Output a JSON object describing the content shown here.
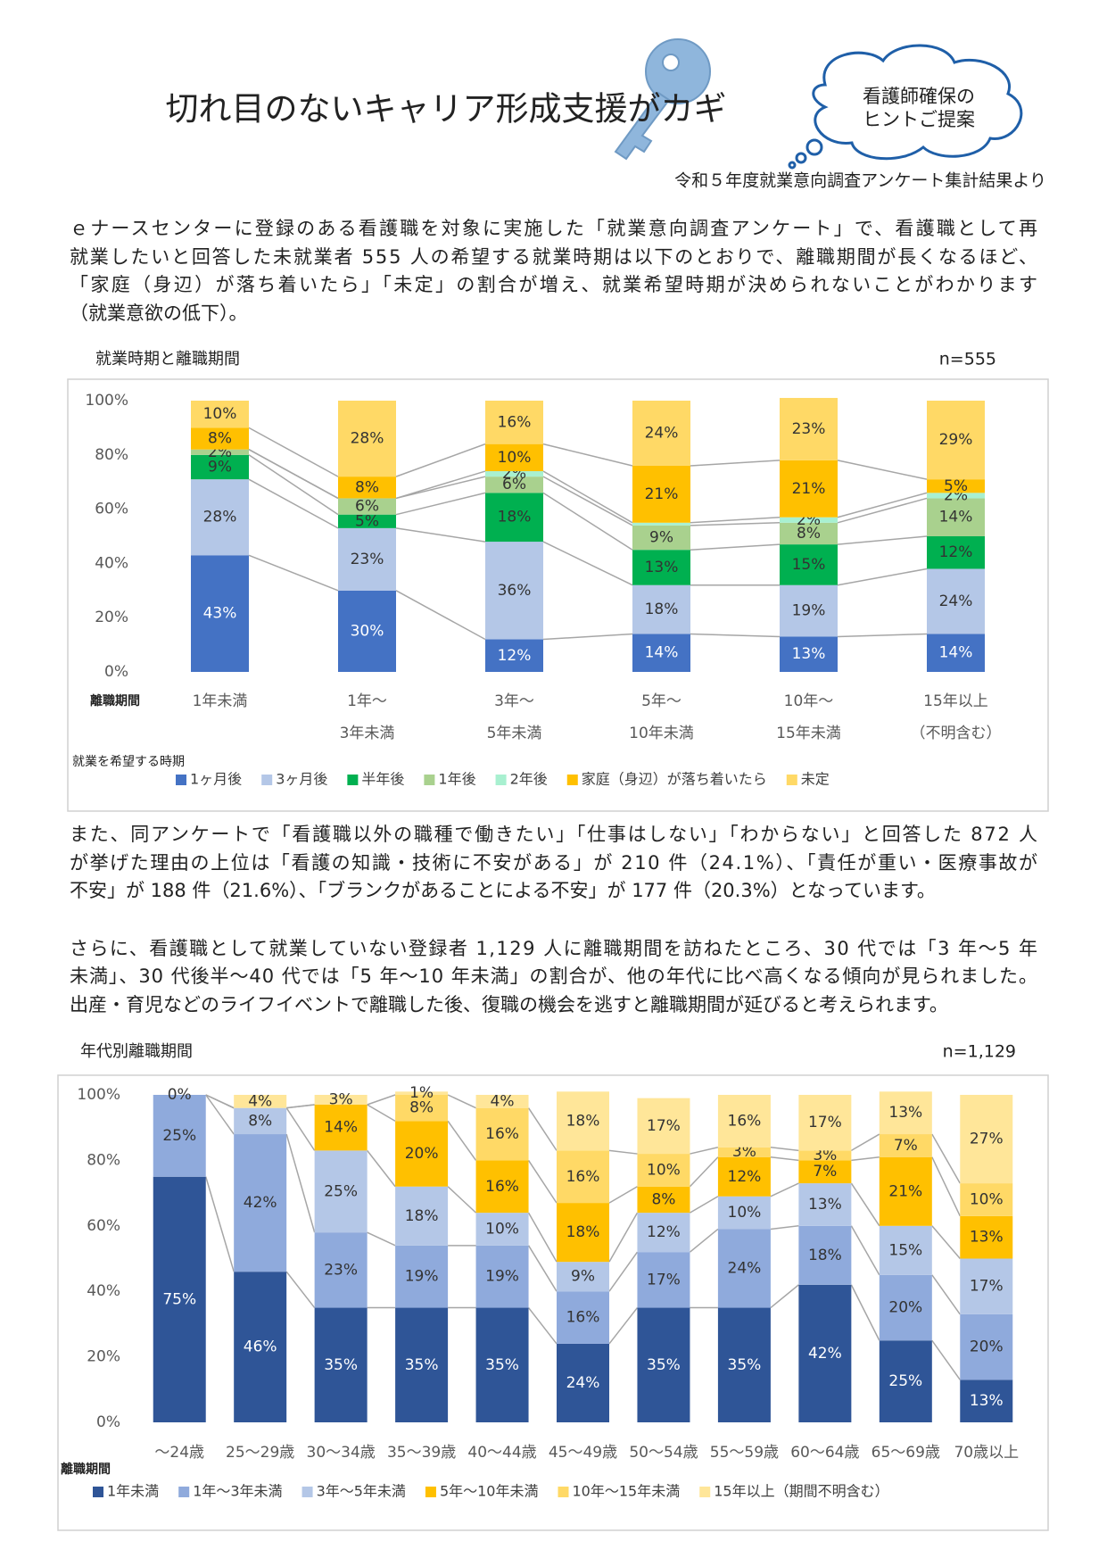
{
  "header": {
    "title": "切れ目のないキャリア形成支援がカギ",
    "cloud": [
      "看護師確保の",
      "ヒントご提案"
    ],
    "source": "令和５年度就業意向調査アンケート集計結果より"
  },
  "paragraphs": [
    [
      "ｅナースセンターに登録のある看護職を対象に実施した「就業意向調査アンケート」で、看護職として再",
      "就業したいと回答した未就業者 555 人の希望する就業時期は以下のとおりで、離職期間が長くなるほど、",
      "「家庭（身辺）が落ち着いたら」「未定」の割合が増え、就業希望時期が決められないことがわかります",
      "（就業意欲の低下）。"
    ],
    [
      "また、同アンケートで「看護職以外の職種で働きたい」「仕事はしない」「わからない」と回答した 872 人",
      "が挙げた理由の上位は「看護の知識・技術に不安がある」が 210 件（24.1%）、「責任が重い・医療事故が",
      "不安」が 188 件（21.6%）、「ブランクがあることによる不安」が 177 件（20.3%）となっています。"
    ],
    [
      "さらに、看護職として就業していない登録者 1,129 人に離職期間を訪ねたところ、30 代では「3 年～5 年",
      "未満」、30 代後半～40 代では「5 年～10 年未満」の割合が、他の年代に比べ高くなる傾向が見られました。",
      "出産・育児などのライフイベントで離職した後、復職の機会を逃すと離職期間が延びると考えられます。"
    ]
  ],
  "chart_data": [
    {
      "type": "stacked_bar",
      "title": "就業時期と離職期間",
      "note": "n=555",
      "x_label": "離職期間",
      "legend_title": "就業を希望する時期",
      "categories": [
        [
          "1年未満"
        ],
        [
          "1年～",
          "3年未満"
        ],
        [
          "3年～",
          "5年未満"
        ],
        [
          "5年～",
          "10年未満"
        ],
        [
          "10年～",
          "15年未満"
        ],
        [
          "15年以上",
          "（不明含む）"
        ]
      ],
      "ylim": [
        0,
        100
      ],
      "yticks": [
        {
          "value": 0,
          "label": "0%"
        },
        {
          "value": 20,
          "label": "20%"
        },
        {
          "value": 40,
          "label": "40%"
        },
        {
          "value": 60,
          "label": "60%"
        },
        {
          "value": 80,
          "label": "80%"
        },
        {
          "value": 100,
          "label": "100%"
        }
      ],
      "series": [
        {
          "name": "1ヶ月後",
          "color": "#4472c4",
          "values": [
            43,
            30,
            12,
            14,
            13,
            14
          ],
          "value_labels": [
            "43%",
            "30%",
            "12%",
            "14%",
            "13%",
            "14%"
          ]
        },
        {
          "name": "3ヶ月後",
          "color": "#b4c7e7",
          "values": [
            28,
            23,
            36,
            18,
            19,
            24
          ],
          "value_labels": [
            "28%",
            "23%",
            "36%",
            "18%",
            "19%",
            "24%"
          ]
        },
        {
          "name": "半年後",
          "color": "#00b050",
          "values": [
            9,
            5,
            18,
            13,
            15,
            12
          ],
          "value_labels": [
            "9%",
            "5%",
            "18%",
            "13%",
            "15%",
            "12%"
          ]
        },
        {
          "name": "1年後",
          "color": "#a9d18e",
          "values": [
            2,
            6,
            6,
            9,
            8,
            14
          ],
          "value_labels": [
            "2%",
            "6%",
            "6%",
            "9%",
            "8%",
            "14%"
          ]
        },
        {
          "name": "2年後",
          "color": "#a8f0d0",
          "values": [
            0,
            0,
            2,
            1,
            2,
            2
          ],
          "value_labels": [
            null,
            null,
            "2%",
            null,
            "2%",
            "2%"
          ]
        },
        {
          "name": "家庭（身辺）が落ち着いたら",
          "color": "#ffc000",
          "values": [
            8,
            8,
            10,
            21,
            21,
            5
          ],
          "value_labels": [
            "8%",
            "8%",
            "10%",
            "21%",
            "21%",
            "5%"
          ]
        },
        {
          "name": "未定",
          "color": "#ffd966",
          "values": [
            10,
            28,
            16,
            24,
            23,
            29
          ],
          "value_labels": [
            "10%",
            "28%",
            "16%",
            "24%",
            "23%",
            "29%"
          ]
        }
      ]
    },
    {
      "type": "stacked_bar",
      "title": "年代別離職期間",
      "note": "n=1,129",
      "x_label": "離職期間",
      "categories": [
        [
          "～24歳"
        ],
        [
          "25～29歳"
        ],
        [
          "30～34歳"
        ],
        [
          "35～39歳"
        ],
        [
          "40～44歳"
        ],
        [
          "45～49歳"
        ],
        [
          "50～54歳"
        ],
        [
          "55～59歳"
        ],
        [
          "60～64歳"
        ],
        [
          "65～69歳"
        ],
        [
          "70歳以上"
        ]
      ],
      "ylim": [
        0,
        100
      ],
      "yticks": [
        {
          "value": 0,
          "label": "0%"
        },
        {
          "value": 20,
          "label": "20%"
        },
        {
          "value": 40,
          "label": "40%"
        },
        {
          "value": 60,
          "label": "60%"
        },
        {
          "value": 80,
          "label": "80%"
        },
        {
          "value": 100,
          "label": "100%"
        }
      ],
      "series": [
        {
          "name": "1年未満",
          "color": "#2f5597",
          "values": [
            75,
            46,
            35,
            35,
            35,
            24,
            35,
            35,
            42,
            25,
            13
          ],
          "value_labels": [
            "75%",
            "46%",
            "35%",
            "35%",
            "35%",
            "24%",
            "35%",
            "35%",
            "42%",
            "25%",
            "13%"
          ]
        },
        {
          "name": "1年～3年未満",
          "color": "#8faadc",
          "values": [
            25,
            42,
            23,
            19,
            19,
            16,
            17,
            24,
            18,
            20,
            20
          ],
          "value_labels": [
            "25%",
            "42%",
            "23%",
            "19%",
            "19%",
            "16%",
            "17%",
            "24%",
            "18%",
            "20%",
            "20%"
          ]
        },
        {
          "name": "3年～5年未満",
          "color": "#b4c7e7",
          "values": [
            0,
            8,
            25,
            18,
            10,
            9,
            12,
            10,
            13,
            15,
            17
          ],
          "value_labels": [
            null,
            "8%",
            "25%",
            "18%",
            "10%",
            "9%",
            "12%",
            "10%",
            "13%",
            "15%",
            "17%"
          ]
        },
        {
          "name": "5年～10年未満",
          "color": "#ffc000",
          "values": [
            0,
            0,
            14,
            20,
            16,
            18,
            8,
            12,
            7,
            21,
            13
          ],
          "value_labels": [
            null,
            null,
            "14%",
            "20%",
            "16%",
            "18%",
            "8%",
            "12%",
            "7%",
            "21%",
            "13%"
          ]
        },
        {
          "name": "10年～15年未満",
          "color": "#ffd966",
          "values": [
            0,
            0,
            0,
            8,
            16,
            16,
            10,
            3,
            3,
            7,
            10
          ],
          "value_labels": [
            null,
            null,
            null,
            "8%",
            "16%",
            "16%",
            "10%",
            "3%",
            "3%",
            "7%",
            "10%"
          ]
        },
        {
          "name": "15年以上（期間不明含む）",
          "color": "#ffe699",
          "values": [
            0,
            4,
            3,
            1,
            4,
            18,
            17,
            16,
            17,
            13,
            27
          ],
          "value_labels": [
            "0%",
            "4%",
            "3%",
            "1%",
            "4%",
            "18%",
            "17%",
            "16%",
            "17%",
            "13%",
            "27%"
          ]
        }
      ]
    }
  ]
}
